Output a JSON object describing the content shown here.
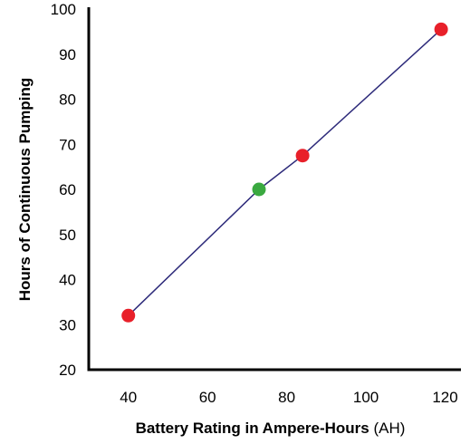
{
  "chart_data": {
    "type": "line",
    "title": "",
    "xlabel": "Battery Rating in Ampere-Hours",
    "xlabel_unit": "(AH)",
    "ylabel": "Hours of Continuous Pumping",
    "xlim": [
      30,
      124
    ],
    "ylim": [
      20,
      100
    ],
    "x_ticks": [
      40,
      60,
      80,
      100,
      120
    ],
    "y_ticks": [
      20,
      30,
      40,
      50,
      60,
      70,
      80,
      90,
      100
    ],
    "grid": false,
    "legend": "none",
    "line_color": "#2d2a7a",
    "points": [
      {
        "x": 40,
        "y": 32,
        "color": "#e8202a"
      },
      {
        "x": 73,
        "y": 60,
        "color": "#3aa940"
      },
      {
        "x": 84,
        "y": 67.5,
        "color": "#e8202a"
      },
      {
        "x": 119,
        "y": 95.5,
        "color": "#e8202a"
      }
    ]
  }
}
